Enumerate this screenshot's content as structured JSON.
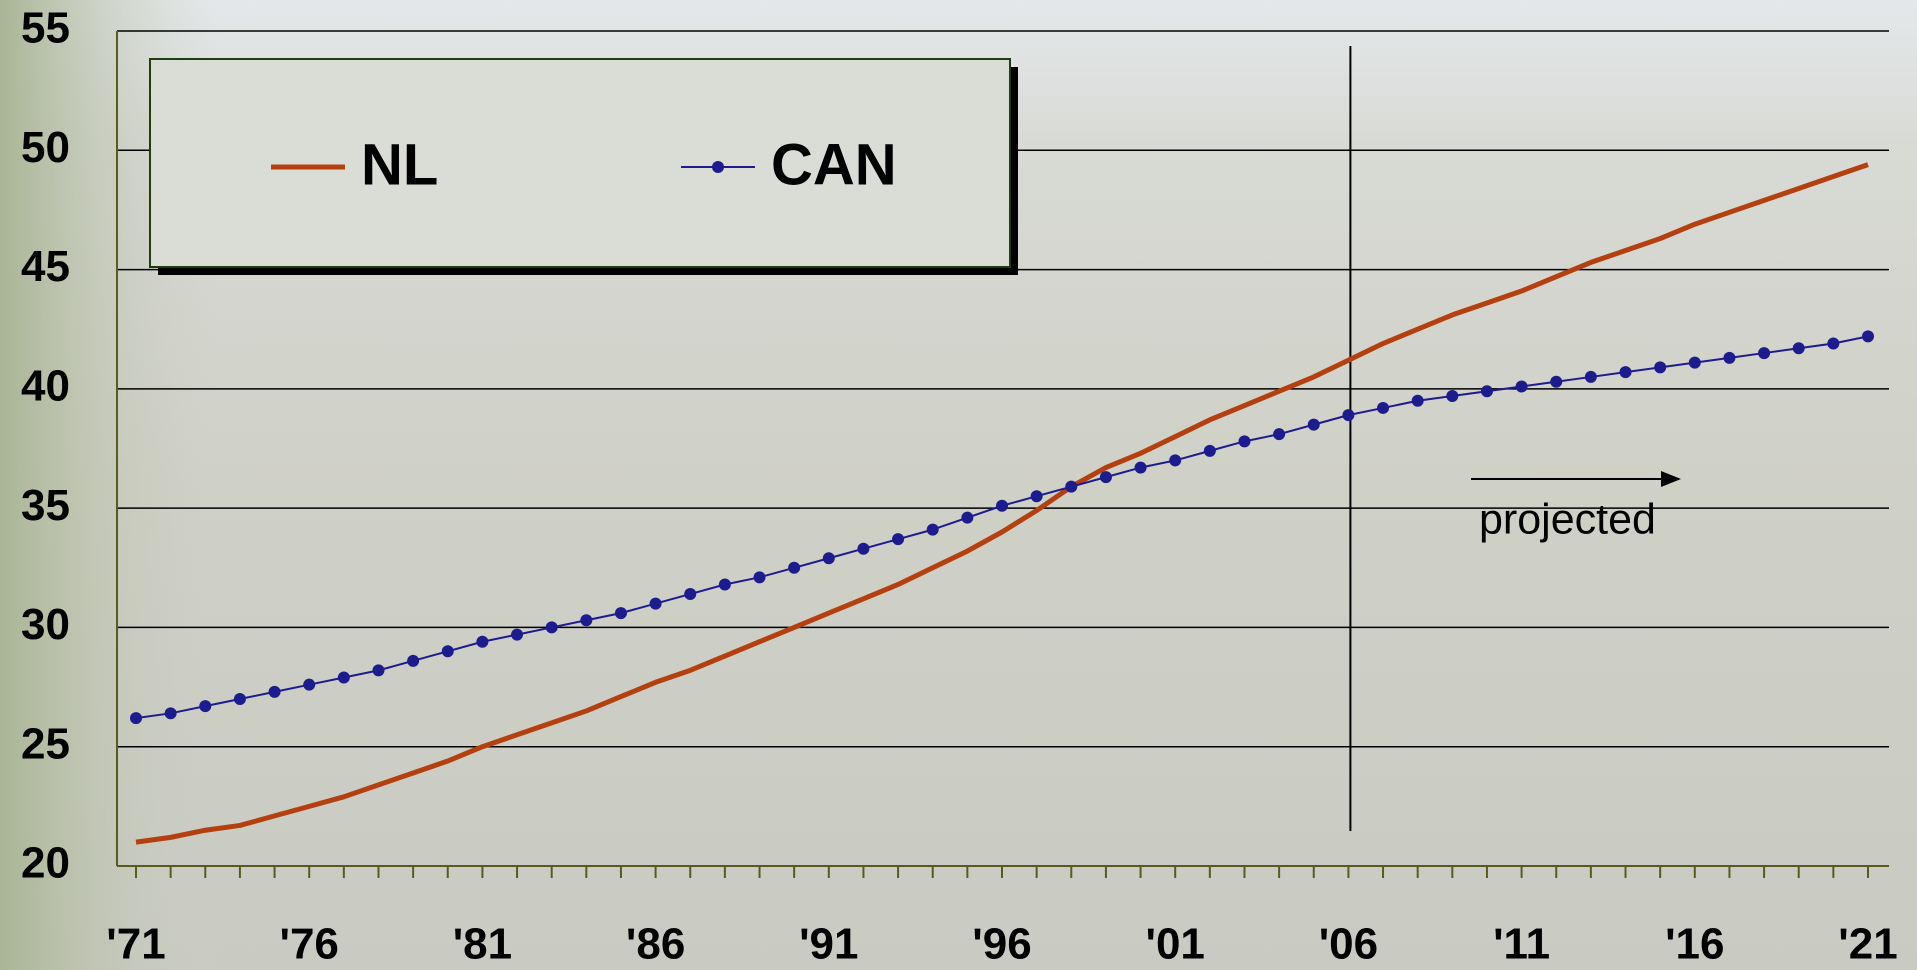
{
  "chart_data": {
    "type": "line",
    "categories": [
      "'71",
      null,
      null,
      null,
      null,
      "'76",
      null,
      null,
      null,
      null,
      "'81",
      null,
      null,
      null,
      null,
      "'86",
      null,
      null,
      null,
      null,
      "'91",
      null,
      null,
      null,
      null,
      "'96",
      null,
      null,
      null,
      null,
      "'01",
      null,
      null,
      null,
      null,
      "'06",
      null,
      null,
      null,
      null,
      "'11",
      null,
      null,
      null,
      null,
      "'16",
      null,
      null,
      null,
      null,
      "'21"
    ],
    "series": [
      {
        "name": "NL",
        "color": "#b5400f",
        "marker": false,
        "values": [
          21.0,
          21.2,
          21.5,
          21.7,
          22.1,
          22.5,
          22.9,
          23.4,
          23.9,
          24.4,
          25.0,
          25.5,
          26.0,
          26.5,
          27.1,
          27.7,
          28.2,
          28.8,
          29.4,
          30.0,
          30.6,
          31.2,
          31.8,
          32.5,
          33.2,
          34.0,
          34.9,
          35.9,
          36.7,
          37.3,
          38.0,
          38.7,
          39.3,
          39.9,
          40.5,
          41.2,
          41.9,
          42.5,
          43.1,
          43.6,
          44.1,
          44.7,
          45.3,
          45.8,
          46.3,
          46.9,
          47.4,
          47.9,
          48.4,
          48.9,
          49.4
        ]
      },
      {
        "name": "CAN",
        "color": "#1c1c8f",
        "marker": true,
        "values": [
          26.2,
          26.4,
          26.7,
          27.0,
          27.3,
          27.6,
          27.9,
          28.2,
          28.6,
          29.0,
          29.4,
          29.7,
          30.0,
          30.3,
          30.6,
          31.0,
          31.4,
          31.8,
          32.1,
          32.5,
          32.9,
          33.3,
          33.7,
          34.1,
          34.6,
          35.1,
          35.5,
          35.9,
          36.3,
          36.7,
          37.0,
          37.4,
          37.8,
          38.1,
          38.5,
          38.9,
          39.2,
          39.5,
          39.7,
          39.9,
          40.1,
          40.3,
          40.5,
          40.7,
          40.9,
          41.1,
          41.3,
          41.5,
          41.7,
          41.9,
          42.2
        ]
      }
    ],
    "ylim": [
      20,
      55
    ],
    "yticks": [
      20,
      25,
      30,
      35,
      40,
      45,
      50,
      55
    ],
    "grid": true,
    "legend": "top-left",
    "annotation": "projected"
  }
}
